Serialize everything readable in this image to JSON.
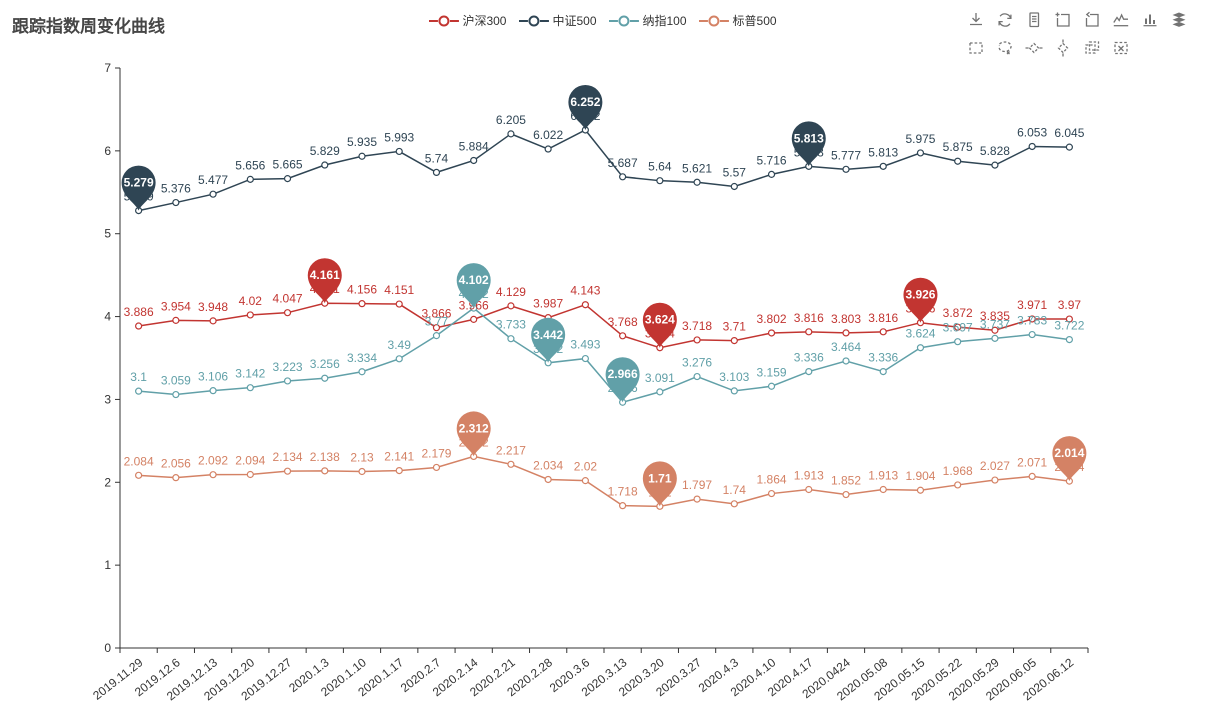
{
  "title": "跟踪指数周变化曲线",
  "legend": {
    "items": [
      {
        "label": "沪深300",
        "color": "#c23531"
      },
      {
        "label": "中证500",
        "color": "#2f4554"
      },
      {
        "label": "纳指100",
        "color": "#61a0a8"
      },
      {
        "label": "标普500",
        "color": "#d48265"
      }
    ]
  },
  "toolbar": {
    "row1": [
      "save-image-icon",
      "restore-icon",
      "data-view-icon",
      "data-zoom-icon",
      "data-zoom-reset-icon",
      "magic-type-line-icon",
      "magic-type-bar-icon",
      "magic-type-stack-icon"
    ],
    "row2": [
      "brush-rect-icon",
      "brush-polygon-icon",
      "brush-linex-icon",
      "brush-liney-icon",
      "brush-keep-icon",
      "brush-clear-icon"
    ]
  },
  "chart_data": {
    "type": "line",
    "title": "跟踪指数周变化曲线",
    "xlabel": "",
    "ylabel": "",
    "ylim": [
      0,
      7
    ],
    "yticks": [
      0,
      1,
      2,
      3,
      4,
      5,
      6,
      7
    ],
    "grid": false,
    "legend_position": "top",
    "categories": [
      "2019.11.29",
      "2019.12.6",
      "2019.12.13",
      "2019.12.20",
      "2019.12.27",
      "2020.1.3",
      "2020.1.10",
      "2020.1.17",
      "2020.2.7",
      "2020.2.14",
      "2020.2.21",
      "2020.2.28",
      "2020.3.6",
      "2020.3.13",
      "2020.3.20",
      "2020.3.27",
      "2020.4.3",
      "2020.4.10",
      "2020.4.17",
      "2020.0424",
      "2020.05.08",
      "2020.05.15",
      "2020.05.22",
      "2020.05.29",
      "2020.06.05",
      "2020.06.12"
    ],
    "series": [
      {
        "name": "沪深300",
        "color": "#c23531",
        "values": [
          3.886,
          3.954,
          3.948,
          4.02,
          4.047,
          4.161,
          4.156,
          4.151,
          3.866,
          3.966,
          4.129,
          3.987,
          4.143,
          3.768,
          3.624,
          3.718,
          3.71,
          3.802,
          3.816,
          3.803,
          3.816,
          3.926,
          3.872,
          3.835,
          3.971,
          3.97
        ],
        "markpoints": [
          {
            "index": 5,
            "value": 4.161
          },
          {
            "index": 14,
            "value": 3.624
          },
          {
            "index": 21,
            "value": 3.926
          }
        ]
      },
      {
        "name": "中证500",
        "color": "#2f4554",
        "values": [
          5.279,
          5.376,
          5.477,
          5.656,
          5.665,
          5.829,
          5.935,
          5.993,
          5.74,
          5.884,
          6.205,
          6.022,
          6.252,
          5.687,
          5.64,
          5.621,
          5.57,
          5.716,
          5.813,
          5.777,
          5.813,
          5.975,
          5.875,
          5.828,
          6.053,
          6.045
        ],
        "markpoints": [
          {
            "index": 0,
            "value": 5.279
          },
          {
            "index": 12,
            "value": 6.252
          },
          {
            "index": 18,
            "value": 5.813
          }
        ]
      },
      {
        "name": "纳指100",
        "color": "#61a0a8",
        "values": [
          3.1,
          3.059,
          3.106,
          3.142,
          3.223,
          3.256,
          3.334,
          3.49,
          3.77,
          4.102,
          3.733,
          3.442,
          3.493,
          2.966,
          3.091,
          3.276,
          3.103,
          3.159,
          3.336,
          3.464,
          3.336,
          3.624,
          3.697,
          3.737,
          3.783,
          3.722
        ],
        "markpoints": [
          {
            "index": 9,
            "value": 4.102
          },
          {
            "index": 11,
            "value": 3.442
          },
          {
            "index": 13,
            "value": 2.966
          }
        ]
      },
      {
        "name": "标普500",
        "color": "#d48265",
        "values": [
          2.084,
          2.056,
          2.092,
          2.094,
          2.134,
          2.138,
          2.13,
          2.141,
          2.179,
          2.312,
          2.217,
          2.034,
          2.02,
          1.718,
          1.71,
          1.797,
          1.74,
          1.864,
          1.913,
          1.852,
          1.913,
          1.904,
          1.968,
          2.027,
          2.071,
          2.014
        ],
        "markpoints": [
          {
            "index": 9,
            "value": 2.312
          },
          {
            "index": 14,
            "value": 1.71
          },
          {
            "index": 25,
            "value": 2.014
          }
        ]
      }
    ]
  }
}
